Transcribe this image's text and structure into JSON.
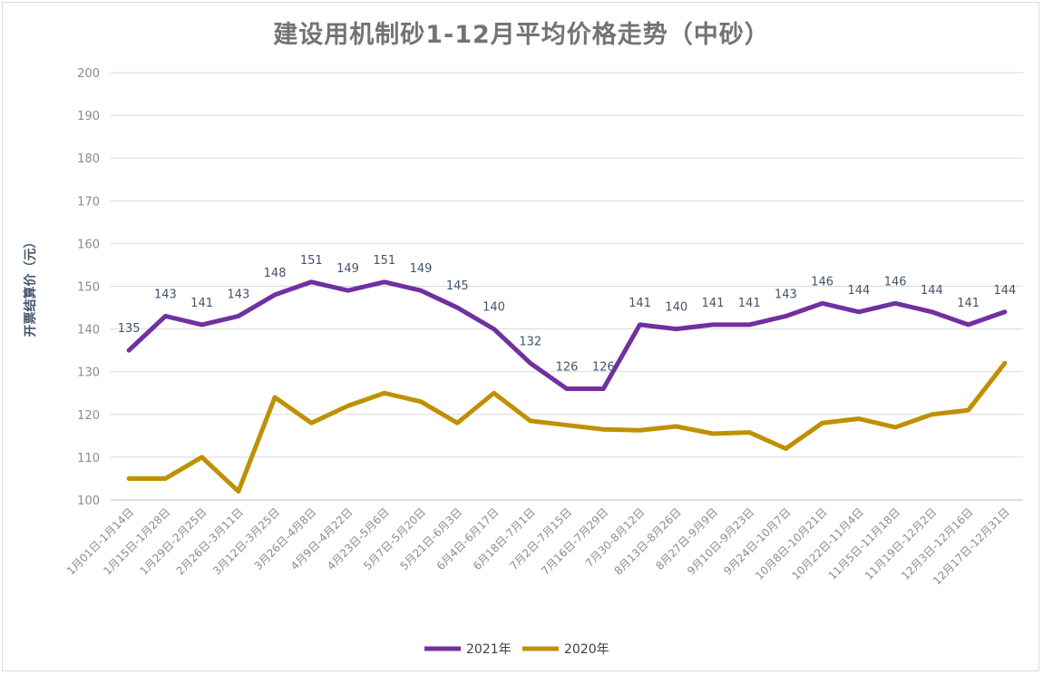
{
  "chart_data": {
    "type": "line",
    "title": "建设用机制砂1-12月平均价格走势（中砂）",
    "ylabel": "开票结算价（元）",
    "xlabel": "",
    "ylim": [
      100,
      200
    ],
    "yticks": [
      100,
      110,
      120,
      130,
      140,
      150,
      160,
      170,
      180,
      190,
      200
    ],
    "grid": true,
    "legend": "bottom",
    "categories": [
      "1月01日-1月14日",
      "1月15日-1月28日",
      "1月29日-2月25日",
      "2月26日-3月11日",
      "3月12日-3月25日",
      "3月26日-4月8日",
      "4月9日-4月22日",
      "4月23日-5月6日",
      "5月7日-5月20日",
      "5月21日-6月3日",
      "6月4日-6月17日",
      "6月18日-7月1日",
      "7月2日-7月15日",
      "7月16日-7月29日",
      "7月30-8月12日",
      "8月13日-8月26日",
      "8月27日-9月9日",
      "9月10日-9月23日",
      "9月24日-10月7日",
      "10月8日-10月21日",
      "10月22日-11月4日",
      "11月5日-11月18日",
      "11月19日-12月2日",
      "12月3日-12月16日",
      "12月17日-12月31日"
    ],
    "series": [
      {
        "name": "2021年",
        "color": "#7030a0",
        "data_labels": true,
        "values": [
          135,
          143,
          141,
          143,
          148,
          151,
          149,
          151,
          149,
          145,
          140,
          132,
          126,
          126,
          141,
          140,
          141,
          141,
          143,
          146,
          144,
          146,
          144,
          141,
          144
        ]
      },
      {
        "name": "2020年",
        "color": "#bf9000",
        "data_labels": false,
        "values": [
          105,
          105,
          110,
          102,
          124,
          118,
          122,
          125,
          123,
          118,
          125,
          118.5,
          117.5,
          116.5,
          116.3,
          117.2,
          115.5,
          115.8,
          112,
          118,
          119,
          117,
          120,
          121,
          132
        ]
      }
    ]
  }
}
